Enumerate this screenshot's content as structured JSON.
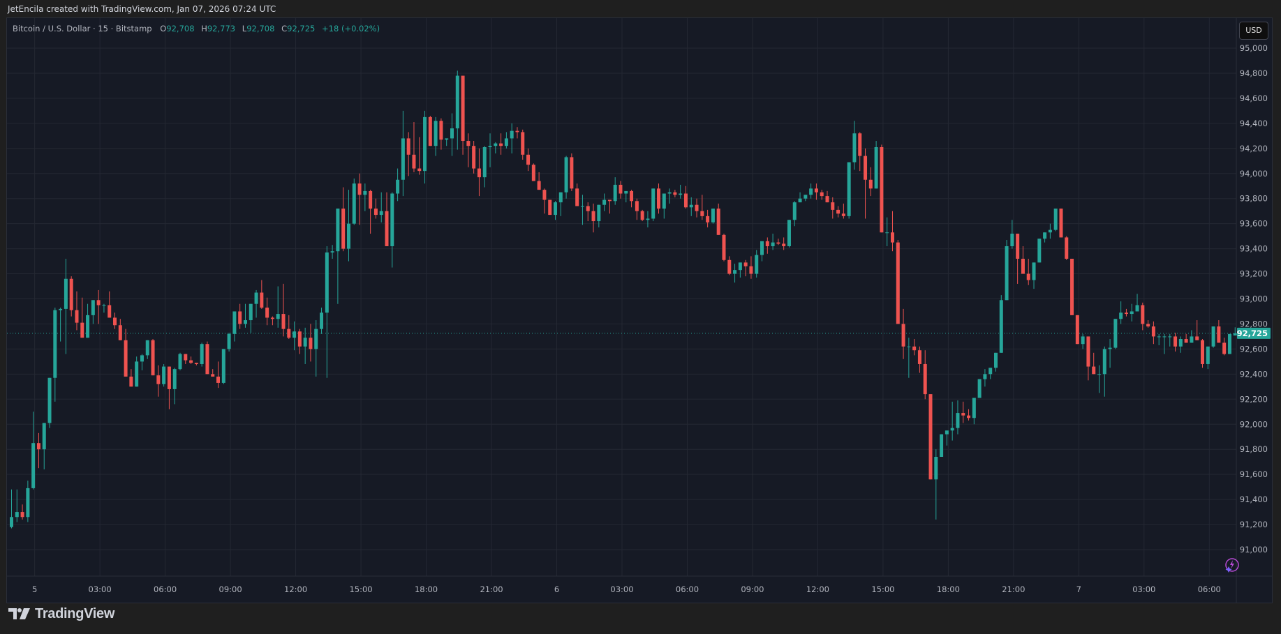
{
  "header": {
    "attribution": "JetEncila created with TradingView.com, Jan 07, 2026 07:24 UTC"
  },
  "legend": {
    "symbol": "Bitcoin / U.S. Dollar · 15 · Bitstamp",
    "o_label": "O",
    "o_value": "92,708",
    "h_label": "H",
    "h_value": "92,773",
    "l_label": "L",
    "l_value": "92,708",
    "c_label": "C",
    "c_value": "92,725",
    "change": "+18 (+0.02%)"
  },
  "price_axis": {
    "currency_button": "USD",
    "last_price_label": "92,725"
  },
  "footer": {
    "brand": "TradingView"
  },
  "colors": {
    "up": "#26a69a",
    "down": "#ef5350",
    "background": "#161a25",
    "grid": "#242833",
    "axis_text": "#b2b5be",
    "last_price": "#26a69a"
  },
  "chart_data": {
    "type": "candlestick",
    "title": "Bitcoin / U.S. Dollar · 15 · Bitstamp",
    "interval": "15m",
    "xlabel": "",
    "ylabel": "USD",
    "ylim": [
      90850,
      95150
    ],
    "y_ticks": [
      91000,
      91200,
      91400,
      91600,
      91800,
      92000,
      92200,
      92400,
      92600,
      92800,
      93000,
      93200,
      93400,
      93600,
      93800,
      94000,
      94200,
      94400,
      94600,
      94800,
      95000
    ],
    "y_tick_labels": [
      "91,000",
      "91,200",
      "91,400",
      "91,600",
      "91,800",
      "92,000",
      "92,200",
      "92,400",
      "92,600",
      "92,800",
      "93,000",
      "93,200",
      "93,400",
      "93,600",
      "93,800",
      "94,000",
      "94,200",
      "94,400",
      "94,600",
      "94,800",
      "95,000"
    ],
    "x_tick_labels": [
      "5",
      "03:00",
      "06:00",
      "09:00",
      "12:00",
      "15:00",
      "18:00",
      "21:00",
      "6",
      "03:00",
      "06:00",
      "09:00",
      "12:00",
      "15:00",
      "18:00",
      "21:00",
      "7",
      "03:00",
      "06:00"
    ],
    "x_tick_candle_index": [
      4,
      16,
      28,
      40,
      52,
      64,
      76,
      88,
      100,
      112,
      124,
      136,
      148,
      160,
      172,
      184,
      196,
      208,
      220
    ],
    "last_price": 92725,
    "grid": true,
    "legend_position": "top-left",
    "ohlc": [
      [
        91180,
        91480,
        91170,
        91260
      ],
      [
        91260,
        91480,
        91220,
        91300
      ],
      [
        91300,
        91360,
        91240,
        91260
      ],
      [
        91260,
        91550,
        91220,
        91490
      ],
      [
        91490,
        92100,
        91480,
        91850
      ],
      [
        91850,
        91930,
        91650,
        91800
      ],
      [
        91800,
        91930,
        91640,
        92010
      ],
      [
        92010,
        92300,
        91970,
        92370
      ],
      [
        92370,
        92930,
        92180,
        92910
      ],
      [
        92910,
        92930,
        92660,
        92920
      ],
      [
        92920,
        93320,
        92560,
        93160
      ],
      [
        93160,
        93180,
        92860,
        92910
      ],
      [
        92910,
        93060,
        92750,
        92810
      ],
      [
        92810,
        93010,
        92700,
        92690
      ],
      [
        92690,
        92960,
        92690,
        92870
      ],
      [
        92870,
        92990,
        92800,
        92990
      ],
      [
        92990,
        93070,
        92800,
        92950
      ],
      [
        92950,
        92960,
        92890,
        92950
      ],
      [
        92950,
        93060,
        92880,
        92850
      ],
      [
        92850,
        92890,
        92760,
        92790
      ],
      [
        92790,
        92840,
        92680,
        92670
      ],
      [
        92670,
        92760,
        92380,
        92380
      ],
      [
        92380,
        92440,
        92300,
        92300
      ],
      [
        92300,
        92540,
        92300,
        92500
      ],
      [
        92500,
        92560,
        92430,
        92550
      ],
      [
        92550,
        92670,
        92520,
        92670
      ],
      [
        92670,
        92680,
        92390,
        92390
      ],
      [
        92390,
        92470,
        92220,
        92320
      ],
      [
        92320,
        92480,
        92300,
        92460
      ],
      [
        92460,
        92400,
        92120,
        92280
      ],
      [
        92280,
        92450,
        92160,
        92440
      ],
      [
        92440,
        92570,
        92430,
        92560
      ],
      [
        92560,
        92560,
        92480,
        92510
      ],
      [
        92510,
        92540,
        92480,
        92490
      ],
      [
        92490,
        92480,
        92470,
        92480
      ],
      [
        92480,
        92650,
        92460,
        92640
      ],
      [
        92640,
        92660,
        92420,
        92400
      ],
      [
        92400,
        92440,
        92380,
        92380
      ],
      [
        92380,
        92500,
        92290,
        92330
      ],
      [
        92330,
        92600,
        92320,
        92600
      ],
      [
        92600,
        92730,
        92580,
        92720
      ],
      [
        92720,
        92900,
        92660,
        92900
      ],
      [
        92900,
        92960,
        92760,
        92800
      ],
      [
        92800,
        92960,
        92770,
        92830
      ],
      [
        92830,
        92960,
        92730,
        92960
      ],
      [
        92960,
        93070,
        92850,
        93050
      ],
      [
        93050,
        93150,
        92920,
        92930
      ],
      [
        92930,
        93010,
        92790,
        92850
      ],
      [
        92850,
        92860,
        92790,
        92840
      ],
      [
        92840,
        93100,
        92770,
        92880
      ],
      [
        92880,
        93120,
        92700,
        92760
      ],
      [
        92760,
        92870,
        92680,
        92690
      ],
      [
        92690,
        92820,
        92590,
        92740
      ],
      [
        92740,
        92760,
        92560,
        92620
      ],
      [
        92620,
        92770,
        92480,
        92690
      ],
      [
        92690,
        92800,
        92500,
        92600
      ],
      [
        92600,
        92830,
        92380,
        92760
      ],
      [
        92760,
        92930,
        92720,
        92890
      ],
      [
        92890,
        93420,
        92370,
        93370
      ],
      [
        93370,
        93430,
        93320,
        93380
      ],
      [
        93380,
        93720,
        92960,
        93720
      ],
      [
        93720,
        93890,
        93380,
        93400
      ],
      [
        93400,
        93870,
        93300,
        93600
      ],
      [
        93600,
        93960,
        93590,
        93920
      ],
      [
        93920,
        94000,
        93590,
        93830
      ],
      [
        93830,
        93920,
        93700,
        93860
      ],
      [
        93860,
        93870,
        93520,
        93720
      ],
      [
        93720,
        93800,
        93640,
        93670
      ],
      [
        93670,
        93850,
        93610,
        93700
      ],
      [
        93700,
        93850,
        93430,
        93420
      ],
      [
        93420,
        93850,
        93250,
        93840
      ],
      [
        93840,
        94040,
        93780,
        93950
      ],
      [
        93950,
        94500,
        93820,
        94280
      ],
      [
        94280,
        94330,
        93980,
        94150
      ],
      [
        94150,
        94410,
        94010,
        94040
      ],
      [
        94040,
        94290,
        93990,
        94020
      ],
      [
        94020,
        94500,
        93920,
        94450
      ],
      [
        94450,
        94460,
        94220,
        94220
      ],
      [
        94220,
        94450,
        94140,
        94420
      ],
      [
        94420,
        94440,
        94190,
        94270
      ],
      [
        94270,
        94270,
        94220,
        94280
      ],
      [
        94280,
        94480,
        94140,
        94360
      ],
      [
        94360,
        94820,
        94190,
        94780
      ],
      [
        94780,
        94780,
        94150,
        94260
      ],
      [
        94260,
        94320,
        94050,
        94220
      ],
      [
        94220,
        94260,
        94000,
        94040
      ],
      [
        94040,
        94200,
        93820,
        93970
      ],
      [
        93970,
        94220,
        93890,
        94210
      ],
      [
        94210,
        94320,
        94050,
        94220
      ],
      [
        94220,
        94250,
        94160,
        94240
      ],
      [
        94240,
        94320,
        94150,
        94220
      ],
      [
        94220,
        94330,
        94200,
        94280
      ],
      [
        94280,
        94400,
        94160,
        94340
      ],
      [
        94340,
        94370,
        94280,
        94330
      ],
      [
        94330,
        94350,
        94110,
        94150
      ],
      [
        94150,
        94200,
        94020,
        94070
      ],
      [
        94070,
        94080,
        93960,
        93940
      ],
      [
        93940,
        94010,
        93900,
        93870
      ],
      [
        93870,
        93880,
        93680,
        93790
      ],
      [
        93790,
        93790,
        93700,
        93670
      ],
      [
        93670,
        93780,
        93630,
        93770
      ],
      [
        93770,
        93840,
        93660,
        93850
      ],
      [
        93850,
        94140,
        93800,
        94130
      ],
      [
        94130,
        94160,
        93860,
        93880
      ],
      [
        93880,
        93920,
        93790,
        93740
      ],
      [
        93740,
        93830,
        93590,
        93740
      ],
      [
        93740,
        93770,
        93620,
        93700
      ],
      [
        93700,
        93760,
        93530,
        93620
      ],
      [
        93620,
        93700,
        93570,
        93750
      ],
      [
        93750,
        93840,
        93700,
        93790
      ],
      [
        93790,
        93790,
        93680,
        93780
      ],
      [
        93780,
        93970,
        93750,
        93910
      ],
      [
        93910,
        93940,
        93800,
        93840
      ],
      [
        93840,
        93850,
        93770,
        93860
      ],
      [
        93860,
        93870,
        93730,
        93780
      ],
      [
        93780,
        93800,
        93630,
        93700
      ],
      [
        93700,
        93710,
        93620,
        93630
      ],
      [
        93630,
        93700,
        93570,
        93640
      ],
      [
        93640,
        93880,
        93620,
        93880
      ],
      [
        93880,
        93920,
        93680,
        93720
      ],
      [
        93720,
        93750,
        93640,
        93840
      ],
      [
        93840,
        93880,
        93760,
        93850
      ],
      [
        93850,
        93870,
        93810,
        93830
      ],
      [
        93830,
        93910,
        93800,
        93840
      ],
      [
        93840,
        93900,
        93720,
        93730
      ],
      [
        93730,
        93810,
        93660,
        93750
      ],
      [
        93750,
        93800,
        93650,
        93700
      ],
      [
        93700,
        93830,
        93630,
        93660
      ],
      [
        93660,
        93710,
        93570,
        93610
      ],
      [
        93610,
        93720,
        93600,
        93720
      ],
      [
        93720,
        93760,
        93530,
        93510
      ],
      [
        93510,
        93520,
        93300,
        93310
      ],
      [
        93310,
        93340,
        93190,
        93200
      ],
      [
        93200,
        93280,
        93130,
        93230
      ],
      [
        93230,
        93270,
        93170,
        93290
      ],
      [
        93290,
        93310,
        93180,
        93260
      ],
      [
        93260,
        93340,
        93160,
        93200
      ],
      [
        93200,
        93390,
        93170,
        93350
      ],
      [
        93350,
        93450,
        93300,
        93460
      ],
      [
        93460,
        93490,
        93360,
        93420
      ],
      [
        93420,
        93520,
        93390,
        93450
      ],
      [
        93450,
        93480,
        93430,
        93440
      ],
      [
        93440,
        93490,
        93390,
        93420
      ],
      [
        93420,
        93630,
        93410,
        93630
      ],
      [
        93630,
        93780,
        93580,
        93770
      ],
      [
        93770,
        93850,
        93770,
        93800
      ],
      [
        93800,
        93820,
        93780,
        93830
      ],
      [
        93830,
        93920,
        93800,
        93880
      ],
      [
        93880,
        93920,
        93790,
        93850
      ],
      [
        93850,
        93870,
        93790,
        93820
      ],
      [
        93820,
        93860,
        93780,
        93770
      ],
      [
        93770,
        93810,
        93640,
        93710
      ],
      [
        93710,
        93740,
        93650,
        93680
      ],
      [
        93680,
        93760,
        93640,
        93660
      ],
      [
        93660,
        94090,
        93640,
        94090
      ],
      [
        94090,
        94420,
        94030,
        94320
      ],
      [
        94320,
        94330,
        94020,
        94140
      ],
      [
        94140,
        94200,
        93640,
        93950
      ],
      [
        93950,
        94050,
        93820,
        93880
      ],
      [
        93880,
        94260,
        93880,
        94210
      ],
      [
        94210,
        94230,
        93880,
        93530
      ],
      [
        93530,
        93650,
        93420,
        93530
      ],
      [
        93530,
        93700,
        93380,
        93450
      ],
      [
        93450,
        93470,
        92800,
        92800
      ],
      [
        92800,
        92920,
        92520,
        92620
      ],
      [
        92620,
        92690,
        92370,
        92620
      ],
      [
        92620,
        92680,
        92550,
        92590
      ],
      [
        92590,
        92620,
        92410,
        92480
      ],
      [
        92480,
        92590,
        92200,
        92240
      ],
      [
        92240,
        92240,
        91560,
        91560
      ],
      [
        91560,
        91800,
        91240,
        91740
      ],
      [
        91740,
        91880,
        91800,
        91920
      ],
      [
        91920,
        91920,
        91830,
        91950
      ],
      [
        91950,
        92180,
        91870,
        91970
      ],
      [
        91970,
        92190,
        91920,
        92090
      ],
      [
        92090,
        92180,
        92010,
        92070
      ],
      [
        92070,
        92120,
        92030,
        92050
      ],
      [
        92050,
        92210,
        92000,
        92210
      ],
      [
        92210,
        92360,
        92280,
        92360
      ],
      [
        92360,
        92440,
        92300,
        92400
      ],
      [
        92400,
        92430,
        92360,
        92450
      ],
      [
        92450,
        92570,
        92420,
        92570
      ],
      [
        92570,
        93030,
        92640,
        92990
      ],
      [
        92990,
        93470,
        92990,
        93420
      ],
      [
        93420,
        93630,
        93400,
        93520
      ],
      [
        93520,
        93520,
        93120,
        93320
      ],
      [
        93320,
        93420,
        93230,
        93200
      ],
      [
        93200,
        93320,
        93110,
        93150
      ],
      [
        93150,
        93240,
        93080,
        93290
      ],
      [
        93290,
        93390,
        93330,
        93480
      ],
      [
        93480,
        93520,
        93450,
        93530
      ],
      [
        93530,
        93600,
        93480,
        93550
      ],
      [
        93550,
        93720,
        93540,
        93720
      ],
      [
        93720,
        93720,
        93550,
        93490
      ],
      [
        93490,
        93500,
        93310,
        93320
      ],
      [
        93320,
        93290,
        93110,
        92870
      ],
      [
        92870,
        92870,
        92640,
        92640
      ],
      [
        92640,
        92720,
        92600,
        92700
      ],
      [
        92700,
        92700,
        92350,
        92460
      ],
      [
        92460,
        92570,
        92400,
        92400
      ],
      [
        92400,
        92470,
        92250,
        92400
      ],
      [
        92400,
        92620,
        92220,
        92600
      ],
      [
        92600,
        92680,
        92450,
        92610
      ],
      [
        92610,
        92790,
        92600,
        92840
      ],
      [
        92840,
        92980,
        92800,
        92890
      ],
      [
        92890,
        92920,
        92860,
        92880
      ],
      [
        92880,
        92960,
        92820,
        92900
      ],
      [
        92900,
        93040,
        92910,
        92950
      ],
      [
        92950,
        92970,
        92750,
        92800
      ],
      [
        92800,
        92830,
        92770,
        92780
      ],
      [
        92780,
        92820,
        92640,
        92700
      ],
      [
        92700,
        92720,
        92630,
        92700
      ],
      [
        92700,
        92720,
        92560,
        92700
      ],
      [
        92700,
        92720,
        92620,
        92700
      ],
      [
        92700,
        92730,
        92580,
        92620
      ],
      [
        92620,
        92700,
        92570,
        92680
      ],
      [
        92680,
        92720,
        92650,
        92650
      ],
      [
        92650,
        92750,
        92650,
        92700
      ],
      [
        92700,
        92830,
        92680,
        92670
      ],
      [
        92670,
        92680,
        92450,
        92480
      ],
      [
        92480,
        92620,
        92440,
        92620
      ],
      [
        92620,
        92780,
        92610,
        92780
      ],
      [
        92780,
        92830,
        92650,
        92650
      ],
      [
        92650,
        92690,
        92550,
        92560
      ],
      [
        92560,
        92720,
        92560,
        92720
      ],
      [
        92708,
        92773,
        92708,
        92725
      ]
    ]
  }
}
